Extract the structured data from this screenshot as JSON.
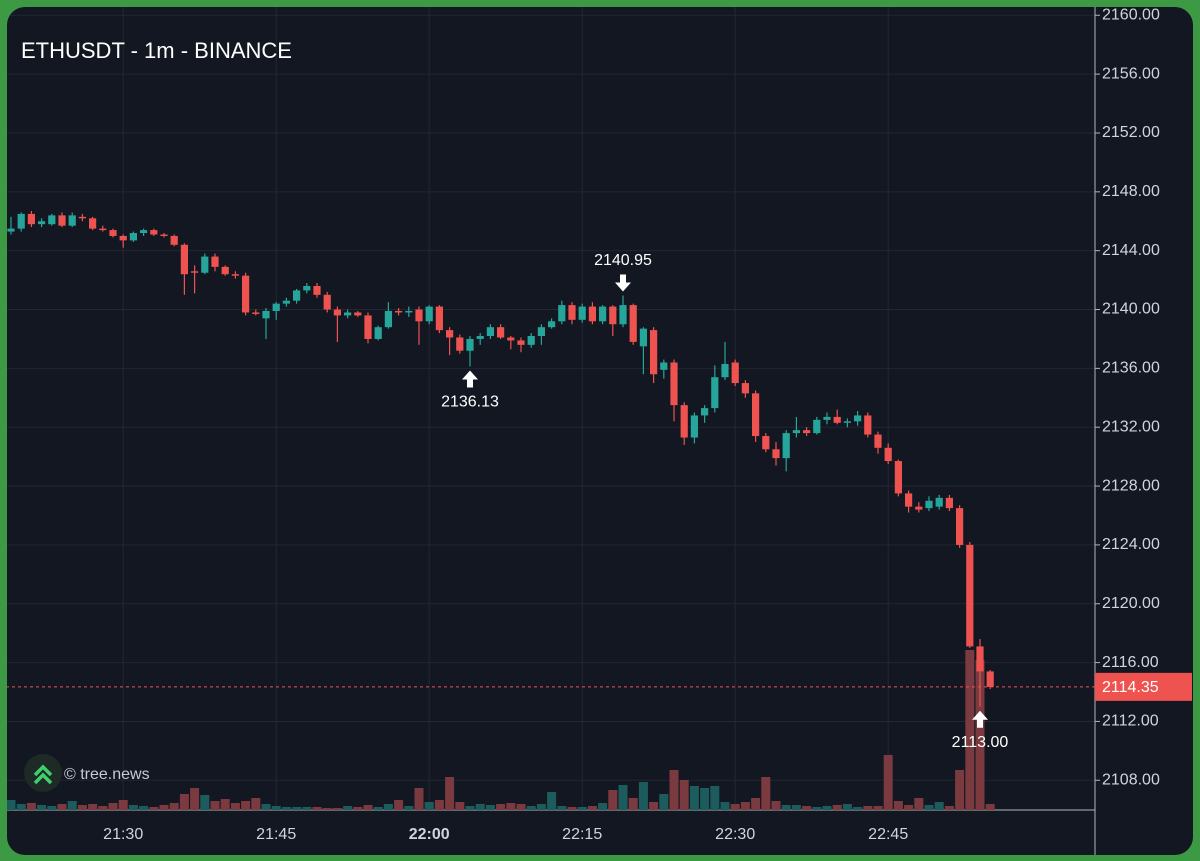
{
  "chart_data": {
    "type": "candlestick",
    "title": "ETHUSDT - 1m - BINANCE",
    "watermark": "© tree.news",
    "up_color": "#26a69a",
    "down_color": "#ef5350",
    "up_volume_color": "#1d5c5c",
    "down_volume_color": "#7a3a40",
    "grid": true,
    "x": [
      "21:19",
      "21:20",
      "21:21",
      "21:22",
      "21:23",
      "21:24",
      "21:25",
      "21:26",
      "21:27",
      "21:28",
      "21:29",
      "21:30",
      "21:31",
      "21:32",
      "21:33",
      "21:34",
      "21:35",
      "21:36",
      "21:37",
      "21:38",
      "21:39",
      "21:40",
      "21:41",
      "21:42",
      "21:43",
      "21:44",
      "21:45",
      "21:46",
      "21:47",
      "21:48",
      "21:49",
      "21:50",
      "21:51",
      "21:52",
      "21:53",
      "21:54",
      "21:55",
      "21:56",
      "21:57",
      "21:58",
      "21:59",
      "22:00",
      "22:01",
      "22:02",
      "22:03",
      "22:04",
      "22:05",
      "22:06",
      "22:07",
      "22:08",
      "22:09",
      "22:10",
      "22:11",
      "22:12",
      "22:13",
      "22:14",
      "22:15",
      "22:16",
      "22:17",
      "22:18",
      "22:19",
      "22:20",
      "22:21",
      "22:22",
      "22:23",
      "22:24",
      "22:25",
      "22:26",
      "22:27",
      "22:28",
      "22:29",
      "22:30",
      "22:31",
      "22:32",
      "22:33",
      "22:34",
      "22:35",
      "22:36",
      "22:37",
      "22:38",
      "22:39",
      "22:40",
      "22:41",
      "22:42",
      "22:43",
      "22:44",
      "22:45",
      "22:46",
      "22:47",
      "22:48",
      "22:49",
      "22:50",
      "22:51",
      "22:52",
      "22:53",
      "22:54",
      "22:55"
    ],
    "ohlc": [
      [
        2145.3,
        2146.3,
        2145.1,
        2145.5
      ],
      [
        2145.5,
        2146.6,
        2145.3,
        2146.5
      ],
      [
        2146.5,
        2146.7,
        2145.6,
        2145.8
      ],
      [
        2145.8,
        2146.2,
        2145.6,
        2146.0
      ],
      [
        2145.8,
        2146.5,
        2145.7,
        2146.4
      ],
      [
        2146.4,
        2146.6,
        2145.6,
        2145.7
      ],
      [
        2145.7,
        2146.6,
        2145.6,
        2146.4
      ],
      [
        2146.3,
        2146.5,
        2146.0,
        2146.2
      ],
      [
        2146.2,
        2146.3,
        2145.4,
        2145.5
      ],
      [
        2145.5,
        2145.7,
        2145.3,
        2145.4
      ],
      [
        2145.4,
        2145.5,
        2144.9,
        2145.0
      ],
      [
        2145.0,
        2145.1,
        2144.2,
        2144.7
      ],
      [
        2144.7,
        2145.3,
        2144.6,
        2145.2
      ],
      [
        2145.2,
        2145.5,
        2145.0,
        2145.4
      ],
      [
        2145.4,
        2145.5,
        2145.0,
        2145.1
      ],
      [
        2145.1,
        2145.2,
        2144.9,
        2145.0
      ],
      [
        2145.0,
        2145.1,
        2144.3,
        2144.4
      ],
      [
        2144.4,
        2144.5,
        2141.0,
        2142.4
      ],
      [
        2142.6,
        2143.0,
        2141.1,
        2142.5
      ],
      [
        2142.5,
        2143.8,
        2142.4,
        2143.6
      ],
      [
        2143.6,
        2143.8,
        2142.6,
        2142.9
      ],
      [
        2142.9,
        2143.0,
        2142.3,
        2142.4
      ],
      [
        2142.4,
        2142.6,
        2142.1,
        2142.3
      ],
      [
        2142.3,
        2142.5,
        2139.6,
        2139.8
      ],
      [
        2139.8,
        2140.0,
        2139.6,
        2139.7
      ],
      [
        2139.4,
        2140.1,
        2138.0,
        2139.9
      ],
      [
        2139.9,
        2140.5,
        2139.3,
        2140.4
      ],
      [
        2140.4,
        2140.8,
        2140.2,
        2140.6
      ],
      [
        2140.6,
        2141.4,
        2140.4,
        2141.3
      ],
      [
        2141.3,
        2141.8,
        2141.1,
        2141.6
      ],
      [
        2141.6,
        2141.8,
        2140.8,
        2141.0
      ],
      [
        2141.0,
        2141.2,
        2139.8,
        2140.0
      ],
      [
        2140.0,
        2140.2,
        2137.8,
        2139.6
      ],
      [
        2139.6,
        2140.0,
        2139.4,
        2139.8
      ],
      [
        2139.8,
        2139.9,
        2139.5,
        2139.6
      ],
      [
        2139.6,
        2139.8,
        2137.7,
        2138.0
      ],
      [
        2138.0,
        2138.9,
        2137.9,
        2138.8
      ],
      [
        2138.8,
        2140.5,
        2138.7,
        2139.9
      ],
      [
        2139.9,
        2140.1,
        2139.6,
        2139.8
      ],
      [
        2139.8,
        2140.2,
        2139.5,
        2139.9
      ],
      [
        2140.0,
        2140.2,
        2137.6,
        2139.2
      ],
      [
        2139.2,
        2140.3,
        2139.0,
        2140.2
      ],
      [
        2140.2,
        2140.3,
        2138.4,
        2138.6
      ],
      [
        2138.6,
        2138.8,
        2136.9,
        2138.1
      ],
      [
        2138.1,
        2138.3,
        2137.0,
        2137.2
      ],
      [
        2137.2,
        2138.2,
        2136.13,
        2138.0
      ],
      [
        2138.0,
        2138.4,
        2137.6,
        2138.2
      ],
      [
        2138.2,
        2139.0,
        2138.0,
        2138.8
      ],
      [
        2138.8,
        2139.0,
        2138.0,
        2138.1
      ],
      [
        2138.1,
        2138.2,
        2137.3,
        2137.9
      ],
      [
        2137.9,
        2138.1,
        2137.1,
        2137.6
      ],
      [
        2137.6,
        2138.4,
        2137.4,
        2138.2
      ],
      [
        2138.2,
        2139.0,
        2137.6,
        2138.8
      ],
      [
        2138.8,
        2139.4,
        2138.7,
        2139.2
      ],
      [
        2139.2,
        2140.6,
        2139.0,
        2140.3
      ],
      [
        2140.3,
        2140.5,
        2139.0,
        2139.3
      ],
      [
        2139.3,
        2140.4,
        2139.1,
        2140.2
      ],
      [
        2140.2,
        2140.5,
        2139.0,
        2139.2
      ],
      [
        2139.2,
        2140.3,
        2139.0,
        2140.2
      ],
      [
        2140.2,
        2140.3,
        2138.2,
        2139.0
      ],
      [
        2139.0,
        2140.95,
        2138.8,
        2140.3
      ],
      [
        2140.3,
        2140.4,
        2137.6,
        2137.8
      ],
      [
        2137.5,
        2138.8,
        2135.6,
        2138.7
      ],
      [
        2138.6,
        2138.8,
        2135.0,
        2135.6
      ],
      [
        2135.9,
        2136.6,
        2135.3,
        2136.4
      ],
      [
        2136.4,
        2136.6,
        2132.4,
        2133.5
      ],
      [
        2133.5,
        2133.7,
        2130.8,
        2131.3
      ],
      [
        2131.3,
        2133.0,
        2130.9,
        2132.8
      ],
      [
        2132.8,
        2133.5,
        2132.3,
        2133.3
      ],
      [
        2133.3,
        2136.2,
        2133.0,
        2135.4
      ],
      [
        2135.4,
        2137.8,
        2135.2,
        2136.3
      ],
      [
        2136.4,
        2136.6,
        2134.8,
        2135.0
      ],
      [
        2135.0,
        2135.2,
        2134.0,
        2134.3
      ],
      [
        2134.3,
        2134.5,
        2131.0,
        2131.4
      ],
      [
        2131.4,
        2131.6,
        2130.3,
        2130.5
      ],
      [
        2130.5,
        2131.0,
        2129.4,
        2129.9
      ],
      [
        2129.9,
        2131.8,
        2129.0,
        2131.6
      ],
      [
        2131.6,
        2132.7,
        2131.3,
        2131.8
      ],
      [
        2131.8,
        2132.0,
        2131.4,
        2131.6
      ],
      [
        2131.6,
        2132.7,
        2131.5,
        2132.5
      ],
      [
        2132.5,
        2133.0,
        2132.2,
        2132.7
      ],
      [
        2132.7,
        2133.2,
        2132.2,
        2132.3
      ],
      [
        2132.3,
        2132.6,
        2132.0,
        2132.4
      ],
      [
        2132.4,
        2133.1,
        2132.1,
        2132.8
      ],
      [
        2132.8,
        2133.0,
        2131.3,
        2131.5
      ],
      [
        2131.5,
        2131.7,
        2130.2,
        2130.6
      ],
      [
        2130.6,
        2130.9,
        2129.5,
        2129.7
      ],
      [
        2129.7,
        2129.8,
        2127.3,
        2127.5
      ],
      [
        2127.5,
        2127.7,
        2126.2,
        2126.6
      ],
      [
        2126.6,
        2126.9,
        2126.2,
        2126.4
      ],
      [
        2126.5,
        2127.3,
        2126.3,
        2127.0
      ],
      [
        2126.6,
        2127.4,
        2126.4,
        2127.2
      ],
      [
        2127.2,
        2127.4,
        2126.3,
        2126.5
      ],
      [
        2126.5,
        2126.7,
        2123.8,
        2124.0
      ],
      [
        2124.0,
        2124.2,
        2117.0,
        2117.1
      ],
      [
        2117.1,
        2117.6,
        2113.0,
        2115.4
      ],
      [
        2115.4,
        2115.5,
        2114.2,
        2114.35
      ]
    ],
    "volume": [
      10,
      6,
      7,
      5,
      4,
      6,
      9,
      5,
      6,
      4,
      7,
      10,
      5,
      4,
      3,
      5,
      7,
      16,
      22,
      15,
      9,
      11,
      7,
      9,
      12,
      6,
      4,
      3,
      3,
      3,
      3,
      2,
      2,
      4,
      3,
      5,
      3,
      6,
      10,
      4,
      22,
      8,
      10,
      33,
      8,
      4,
      6,
      5,
      6,
      7,
      6,
      4,
      6,
      18,
      4,
      3,
      3,
      4,
      7,
      20,
      25,
      12,
      28,
      8,
      16,
      40,
      30,
      24,
      22,
      24,
      8,
      6,
      8,
      12,
      33,
      9,
      5,
      5,
      4,
      3,
      4,
      5,
      6,
      3,
      4,
      4,
      55,
      9,
      5,
      12,
      5,
      8,
      4,
      40,
      160,
      150,
      6
    ],
    "volume_ylim": [
      0,
      200
    ],
    "ylim": [
      2105.98,
      2161.04
    ],
    "yticks": [
      {
        "value": 2160,
        "label": "2160.00"
      },
      {
        "value": 2156,
        "label": "2156.00"
      },
      {
        "value": 2152,
        "label": "2152.00"
      },
      {
        "value": 2148,
        "label": "2148.00"
      },
      {
        "value": 2144,
        "label": "2144.00"
      },
      {
        "value": 2140,
        "label": "2140.00"
      },
      {
        "value": 2136,
        "label": "2136.00"
      },
      {
        "value": 2132,
        "label": "2132.00"
      },
      {
        "value": 2128,
        "label": "2128.00"
      },
      {
        "value": 2124,
        "label": "2124.00"
      },
      {
        "value": 2120,
        "label": "2120.00"
      },
      {
        "value": 2116,
        "label": "2116.00"
      },
      {
        "value": 2112,
        "label": "2112.00"
      },
      {
        "value": 2108,
        "label": "2108.00"
      }
    ],
    "xticks": [
      "21:30",
      "21:45",
      "22:00",
      "22:15",
      "22:30",
      "22:45"
    ],
    "markers": [
      {
        "x": "22:19",
        "value": 2140.95,
        "side": "high"
      },
      {
        "x": "22:04",
        "value": 2136.13,
        "side": "low"
      },
      {
        "x": "22:54",
        "value": 2113,
        "label": "2113.00",
        "side": "low"
      }
    ]
  }
}
